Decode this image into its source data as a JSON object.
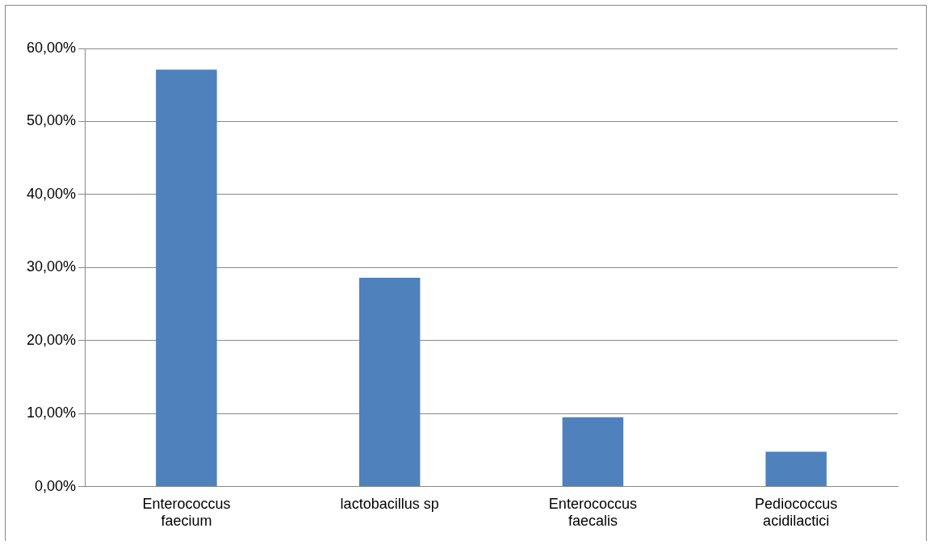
{
  "chart_data": {
    "type": "bar",
    "categories": [
      "Enterococcus faecium",
      "lactobacillus sp",
      "Enterococcus faecalis",
      "Pediococcus acidilactici"
    ],
    "values": [
      57.1,
      28.6,
      9.5,
      4.8
    ],
    "color": "#4f81bd",
    "ylim": [
      0,
      60
    ],
    "yticks": [
      {
        "value": 0,
        "label": "0,00%"
      },
      {
        "value": 10,
        "label": "10,00%"
      },
      {
        "value": 20,
        "label": "20,00%"
      },
      {
        "value": 30,
        "label": "30,00%"
      },
      {
        "value": 40,
        "label": "40,00%"
      },
      {
        "value": 50,
        "label": "50,00%"
      },
      {
        "value": 60,
        "label": "60,00%"
      }
    ],
    "grid": "y",
    "legend": false
  }
}
